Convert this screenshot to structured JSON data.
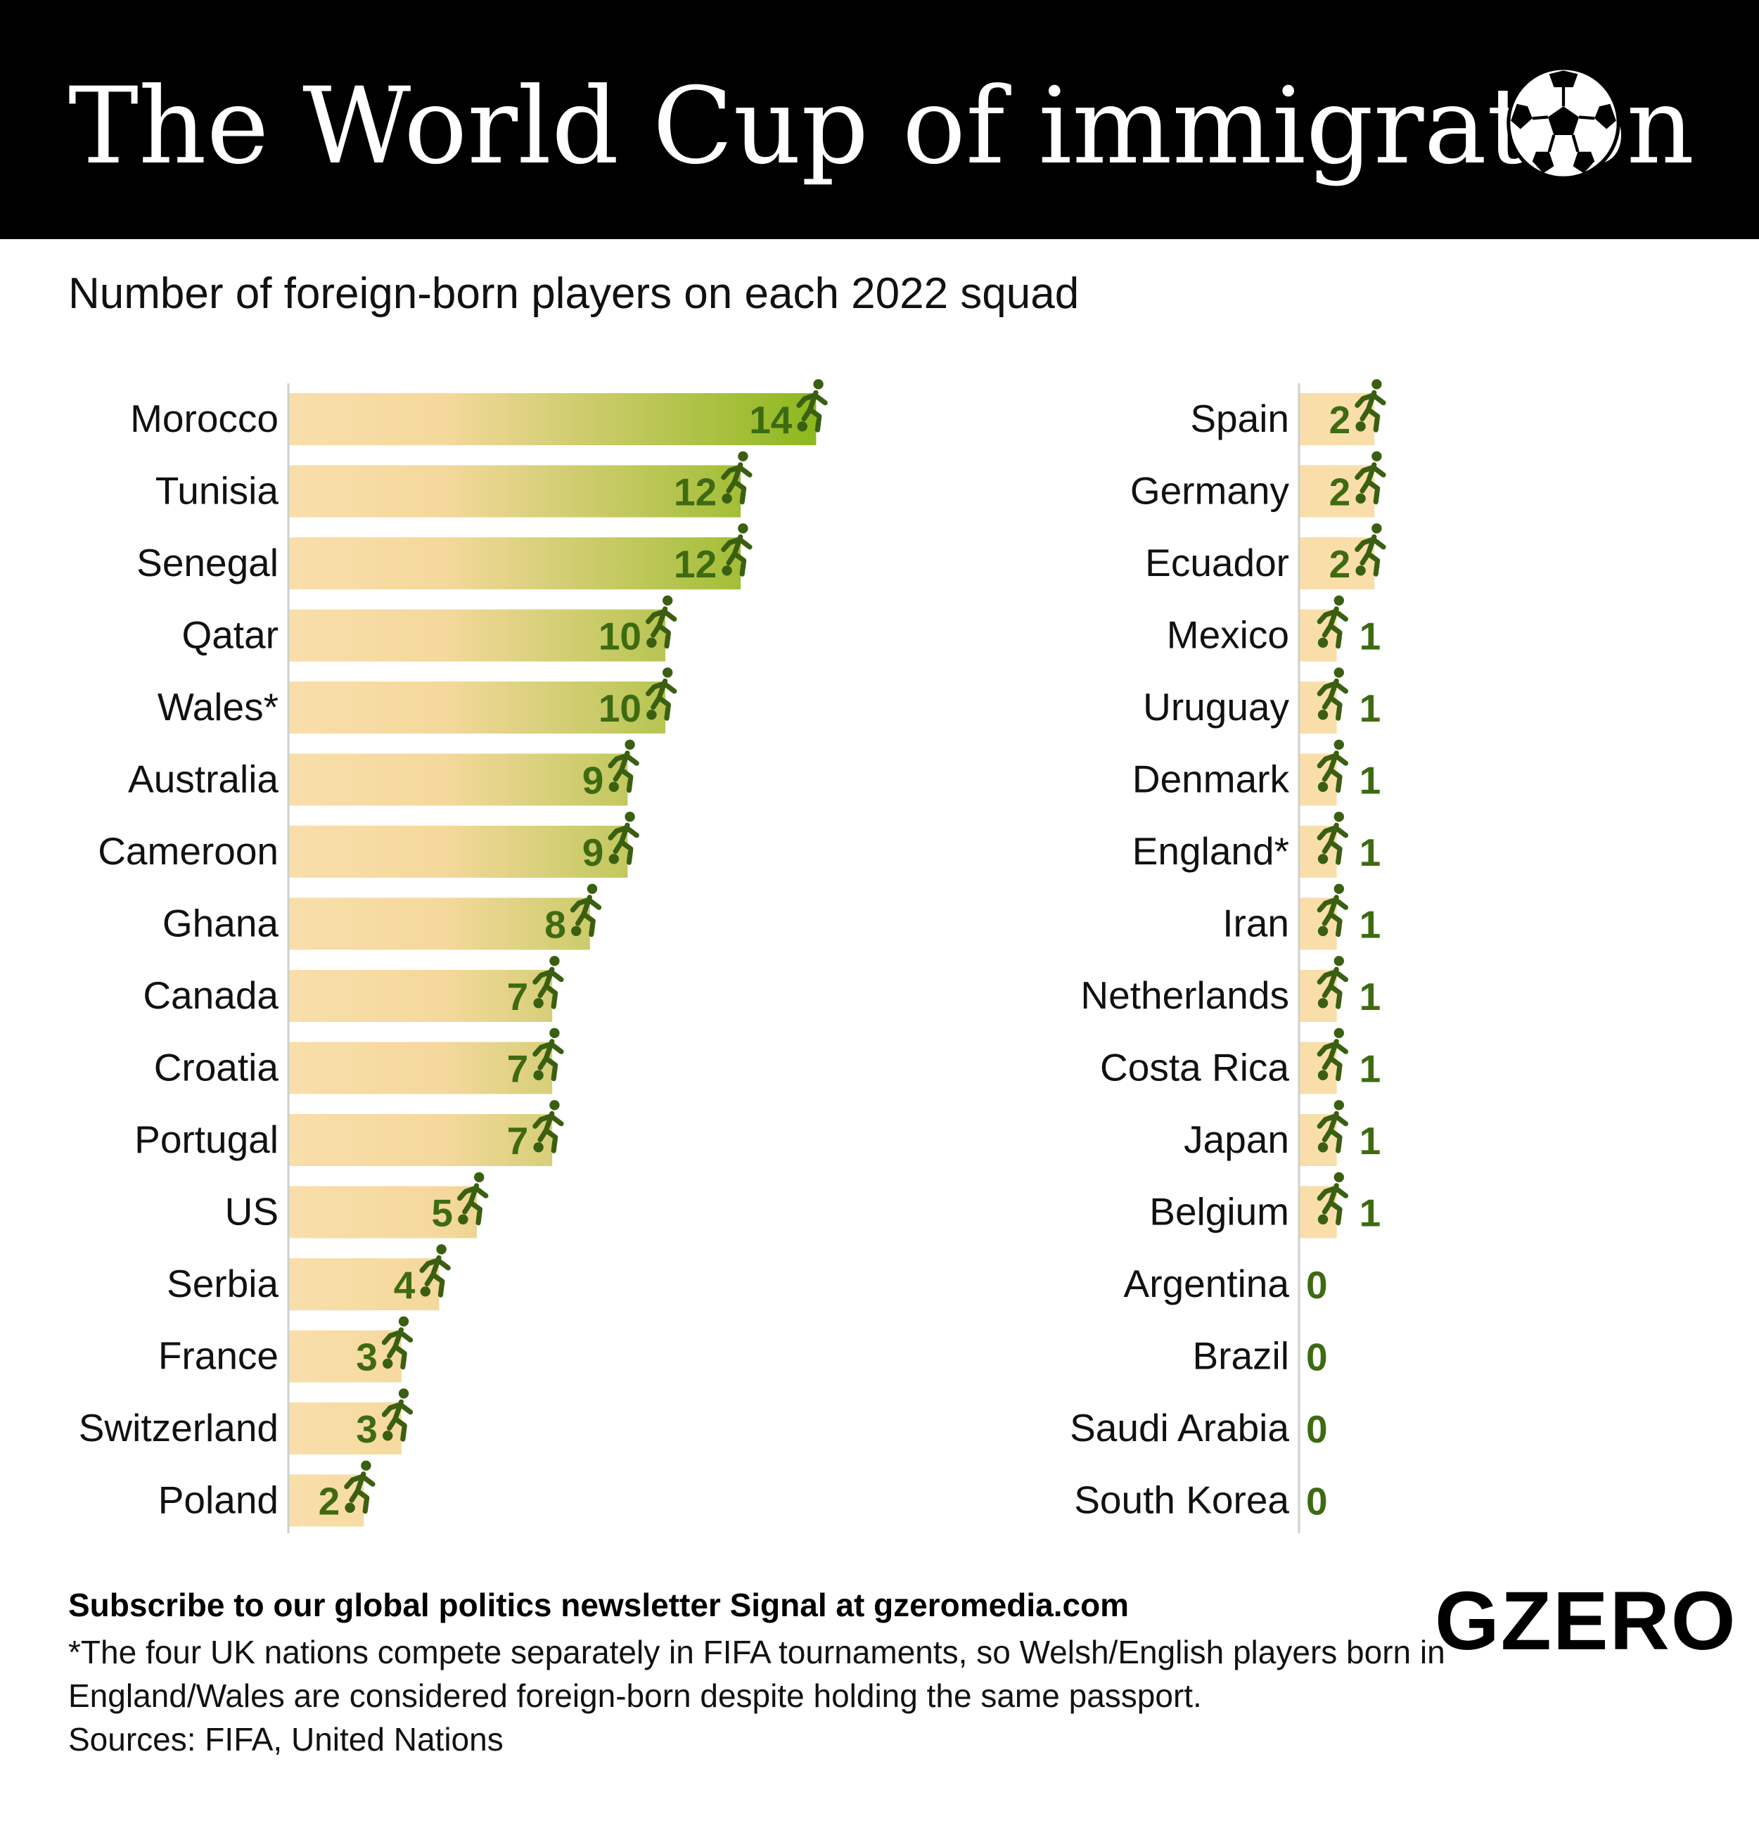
{
  "header": {
    "title": "The World Cup of immigration",
    "subtitle": "Number of foreign-born players on each 2022 squad",
    "icon": "soccer-ball-icon"
  },
  "chart_data": {
    "type": "bar",
    "orientation": "horizontal",
    "unit": "foreign-born players",
    "marker_icon": "soccer-player-icon",
    "colors": {
      "bar_start": "#f9deaa",
      "bar_end": "#8db81e",
      "label": "#3e6b12",
      "icon": "#3a5f10"
    },
    "panels": [
      {
        "categories": [
          "Morocco",
          "Tunisia",
          "Senegal",
          "Qatar",
          "Wales*",
          "Australia",
          "Cameroon",
          "Ghana",
          "Canada",
          "Croatia",
          "Portugal",
          "US",
          "Serbia",
          "France",
          "Switzerland",
          "Poland"
        ],
        "values": [
          14,
          12,
          12,
          10,
          10,
          9,
          9,
          8,
          7,
          7,
          7,
          5,
          4,
          3,
          3,
          2
        ]
      },
      {
        "categories": [
          "Spain",
          "Germany",
          "Ecuador",
          "Mexico",
          "Uruguay",
          "Denmark",
          "England*",
          "Iran",
          "Netherlands",
          "Costa Rica",
          "Japan",
          "Belgium",
          "Argentina",
          "Brazil",
          "Saudi Arabia",
          "South Korea"
        ],
        "values": [
          2,
          2,
          2,
          1,
          1,
          1,
          1,
          1,
          1,
          1,
          1,
          1,
          0,
          0,
          0,
          0
        ]
      }
    ]
  },
  "footer": {
    "subscribe": "Subscribe to our global politics newsletter Signal at gzeromedia.com",
    "note": "*The four UK nations compete separately in FIFA tournaments, so Welsh/English players born in England/Wales are considered foreign-born despite holding the same passport.",
    "sources": "Sources: FIFA, United Nations",
    "logo": "GZERO"
  }
}
